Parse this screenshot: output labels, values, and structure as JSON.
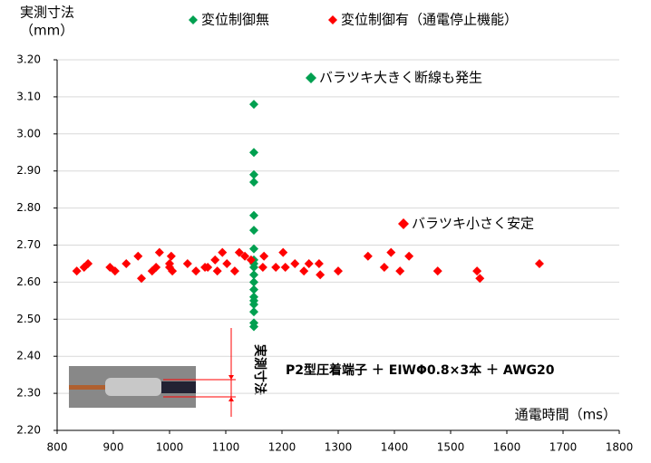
{
  "chart_data": {
    "type": "scatter",
    "ylabel": [
      "実測寸法",
      "（mm）"
    ],
    "xlabel": "通電時間（ms）",
    "annotations": [
      "バラツキ大きく断線も発生",
      "バラツキ小さく安定",
      "P2型圧着端子 ＋ EIWΦ0.8×3本 ＋ AWG20",
      "実測寸法"
    ],
    "xlim": [
      800,
      1800
    ],
    "xticks": [
      800,
      900,
      1000,
      1100,
      1200,
      1300,
      1400,
      1500,
      1600,
      1700,
      1800
    ],
    "ylim": [
      2.2,
      3.2
    ],
    "yticks": [
      {
        "value": 2.2,
        "label": "2.20"
      },
      {
        "value": 2.3,
        "label": "2.30"
      },
      {
        "value": 2.4,
        "label": "2.40"
      },
      {
        "value": 2.5,
        "label": "2.50"
      },
      {
        "value": 2.6,
        "label": "2.60"
      },
      {
        "value": 2.7,
        "label": "2.70"
      },
      {
        "value": 2.8,
        "label": "2.80"
      },
      {
        "value": 2.9,
        "label": "2.90"
      },
      {
        "value": 3.0,
        "label": "3.00"
      },
      {
        "value": 3.1,
        "label": "3.10"
      },
      {
        "value": 3.2,
        "label": "3.20"
      }
    ],
    "grid": true,
    "series": [
      {
        "name": "変位制御無",
        "color": "#00a050",
        "x": [
          1150,
          1150,
          1150,
          1150,
          1150,
          1150,
          1150,
          1150,
          1150,
          1150,
          1150,
          1150,
          1150,
          1150,
          1150,
          1150,
          1150,
          1150,
          1150
        ],
        "values": [
          3.08,
          2.95,
          2.89,
          2.87,
          2.78,
          2.74,
          2.69,
          2.66,
          2.65,
          2.64,
          2.62,
          2.6,
          2.58,
          2.56,
          2.55,
          2.54,
          2.52,
          2.49,
          2.48
        ]
      },
      {
        "name": "変位制御有（通電停止機能）",
        "color": "#ff0000",
        "x": [
          835,
          848,
          855,
          894,
          903,
          923,
          944,
          950,
          969,
          976,
          982,
          1000,
          1003,
          1005,
          1000,
          1032,
          1047,
          1063,
          1068,
          1081,
          1085,
          1094,
          1102,
          1116,
          1124,
          1134,
          1145,
          1166,
          1168,
          1189,
          1202,
          1206,
          1223,
          1239,
          1248,
          1266,
          1268,
          1300,
          1353,
          1382,
          1394,
          1410,
          1426,
          1477,
          1547,
          1552,
          1658
        ],
        "values": [
          2.63,
          2.64,
          2.65,
          2.64,
          2.63,
          2.65,
          2.67,
          2.61,
          2.63,
          2.64,
          2.68,
          2.65,
          2.67,
          2.63,
          2.64,
          2.65,
          2.63,
          2.64,
          2.64,
          2.66,
          2.63,
          2.68,
          2.65,
          2.63,
          2.68,
          2.67,
          2.66,
          2.64,
          2.67,
          2.64,
          2.68,
          2.64,
          2.65,
          2.63,
          2.65,
          2.65,
          2.62,
          2.63,
          2.67,
          2.64,
          2.68,
          2.63,
          2.67,
          2.63,
          2.63,
          2.61,
          2.65
        ]
      }
    ]
  }
}
